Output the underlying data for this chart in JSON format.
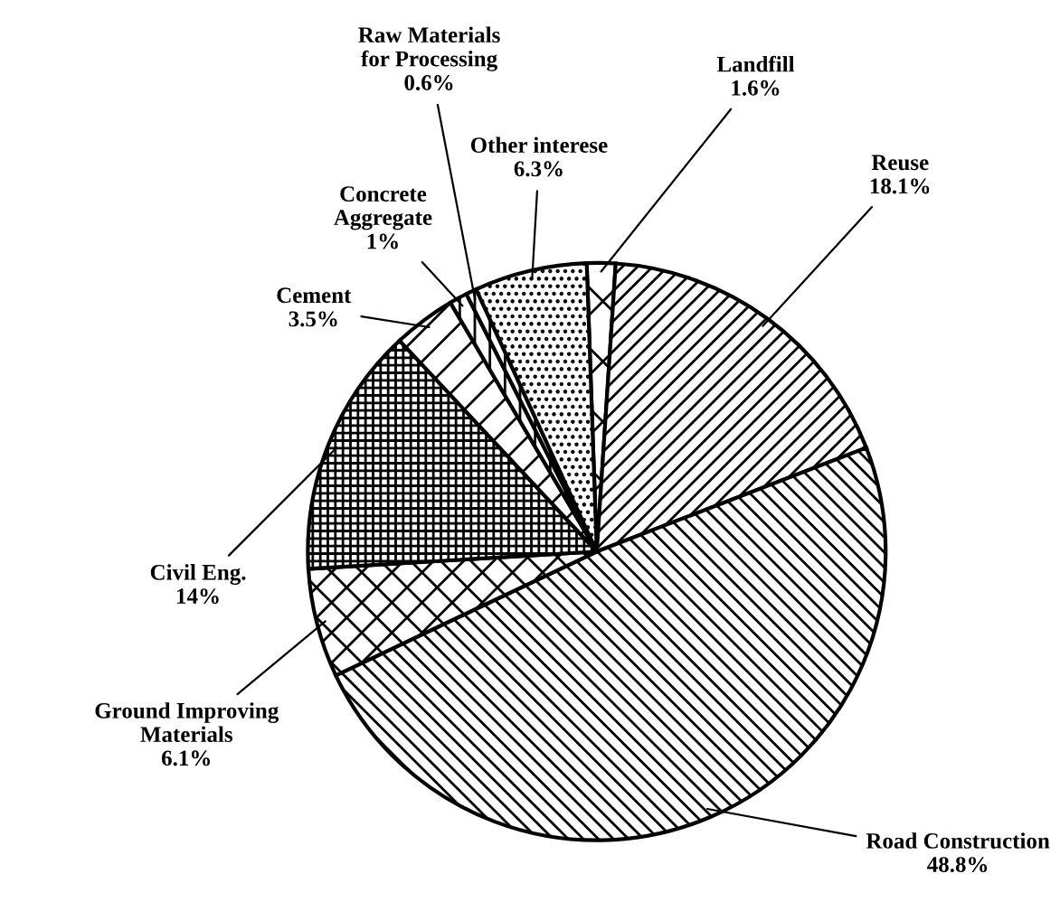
{
  "chart_data": {
    "type": "pie",
    "categories": [
      "Landfill",
      "Reuse",
      "Road Construction",
      "Ground Improving\nMaterials",
      "Civil Eng.",
      "Cement",
      "Concrete\nAggregate",
      "Raw Materials\nfor Processing",
      "Other interese"
    ],
    "values": [
      1.6,
      18.1,
      48.8,
      6.1,
      14,
      3.5,
      1,
      0.6,
      6.3
    ],
    "value_labels": [
      "1.6%",
      "18.1%",
      "48.8%",
      "6.1%",
      "14%",
      "3.5%",
      "1%",
      "0.6%",
      "6.3%"
    ],
    "colors": [
      "#ffffff",
      "#ffffff",
      "#ffffff",
      "#ffffff",
      "#ffffff",
      "#ffffff",
      "#ffffff",
      "#ffffff",
      "#ffffff"
    ]
  }
}
